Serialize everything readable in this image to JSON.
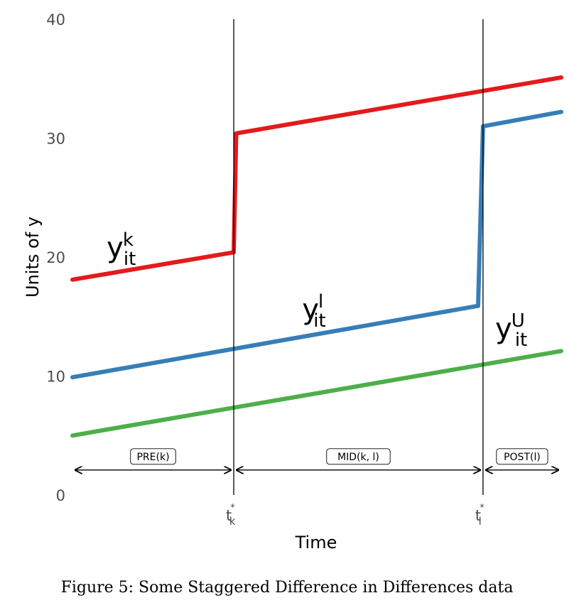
{
  "chart_data": {
    "type": "line",
    "xlabel": "Time",
    "ylabel": "Units of y",
    "ylim": [
      0,
      40
    ],
    "yticks": [
      0,
      10,
      20,
      30,
      40
    ],
    "xlim": [
      0,
      100
    ],
    "xticks": [
      {
        "x": 33,
        "base": "t",
        "sup": "*",
        "sub": "k"
      },
      {
        "x": 84,
        "base": "t",
        "sup": "*",
        "sub": "l"
      }
    ],
    "treatment_lines": [
      33,
      84
    ],
    "series": [
      {
        "label_base": "y",
        "label_sup": "k",
        "label_sub": "it",
        "label_pos": {
          "x": 7,
          "y": 20
        },
        "color": "#e41a1c",
        "points": [
          [
            0,
            18.1
          ],
          [
            33,
            20.4
          ],
          [
            33.5,
            30.4
          ],
          [
            100,
            35.1
          ]
        ]
      },
      {
        "label_base": "y",
        "label_sup": "l",
        "label_sub": "it",
        "label_pos": {
          "x": 47,
          "y": 14.8
        },
        "color": "#377eb8",
        "points": [
          [
            0,
            9.9
          ],
          [
            83,
            15.9
          ],
          [
            84,
            31.0
          ],
          [
            100,
            32.2
          ]
        ]
      },
      {
        "label_base": "y",
        "label_sup": "U",
        "label_sub": "it",
        "label_pos": {
          "x": 86.5,
          "y": 13.2
        },
        "color": "#4daf4a",
        "points": [
          [
            0,
            5.0
          ],
          [
            100,
            12.1
          ]
        ]
      }
    ],
    "periods": [
      {
        "label": "PRE(k)",
        "x0": 0,
        "x1": 33
      },
      {
        "label": "MID(k, l)",
        "x0": 33,
        "x1": 84
      },
      {
        "label": "POST(l)",
        "x0": 84,
        "x1": 100
      }
    ],
    "periods_y": 2.1
  },
  "caption": "Figure 5: Some Staggered Difference in Differences data"
}
